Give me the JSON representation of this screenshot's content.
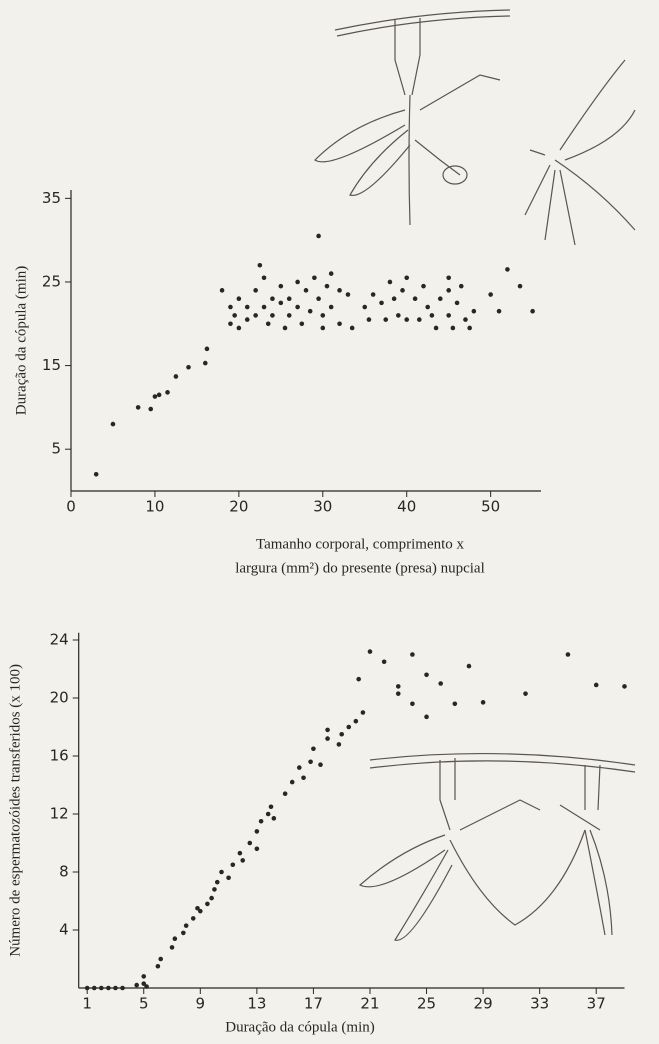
{
  "chart_data": [
    {
      "type": "scatter",
      "y_label": "Duração da cópula (min)",
      "x_label": [
        "Tamanho corporal, comprimento x",
        "largura (mm²) do presente (presa) nupcial"
      ],
      "x": [
        3,
        5,
        8,
        9.5,
        10,
        10.5,
        11.5,
        12.5,
        14,
        16,
        16.2,
        18,
        19,
        19,
        19.5,
        20,
        20,
        21,
        21,
        22,
        22,
        22.5,
        23,
        23,
        23.5,
        24,
        24,
        25,
        25,
        25.5,
        26,
        26,
        27,
        27,
        27.5,
        28,
        28.5,
        29,
        29.5,
        29.5,
        30,
        30,
        30.5,
        31,
        31,
        32,
        32,
        33,
        33.5,
        35,
        35.5,
        36,
        37,
        37.5,
        38,
        38.5,
        39,
        39.5,
        40,
        40,
        41,
        41.5,
        42,
        42.5,
        43,
        43.5,
        44,
        45,
        45,
        45,
        45.5,
        46,
        46.5,
        47,
        47.5,
        48,
        50,
        51,
        52,
        53.5,
        55
      ],
      "values": [
        2,
        8,
        10,
        9.8,
        11.3,
        11.5,
        11.8,
        13.7,
        14.8,
        15.3,
        17,
        24,
        22,
        20,
        21,
        23,
        19.5,
        22,
        20.5,
        24,
        21,
        27,
        25.5,
        22,
        20,
        23,
        21,
        24.5,
        22.5,
        19.5,
        23,
        21,
        25,
        22,
        20,
        24,
        21.5,
        25.5,
        30.5,
        23,
        21,
        19.5,
        24.5,
        26,
        22,
        24,
        20,
        23.5,
        19.5,
        22,
        20.5,
        23.5,
        22.5,
        20.5,
        25,
        23,
        21,
        24,
        25.5,
        20.5,
        23,
        20.5,
        24.5,
        22,
        21,
        19.5,
        23,
        25.5,
        24,
        21,
        19.5,
        22.5,
        24.5,
        20.5,
        19.5,
        21.5,
        23.5,
        21.5,
        26.5,
        24.5,
        21.5
      ],
      "color": "#2a2622",
      "xlim": [
        0,
        56
      ],
      "ylim": [
        0,
        36
      ],
      "xticks": [
        0,
        10,
        20,
        30,
        40,
        50
      ],
      "yticks": [
        5,
        15,
        25,
        35
      ]
    },
    {
      "type": "scatter",
      "y_label": "Número de espermatozóides transferidos (x 100)",
      "x_label": [
        "Duração da cópula (min)"
      ],
      "x": [
        1,
        1.5,
        2,
        2.5,
        3,
        3.5,
        4.5,
        5,
        5,
        5.2,
        6,
        6.2,
        7,
        7.2,
        7.8,
        8,
        8.5,
        8.8,
        9,
        9.5,
        9.8,
        10,
        10.2,
        10.5,
        11,
        11.3,
        11.8,
        12,
        12.5,
        13,
        13,
        13.3,
        13.8,
        14,
        14.2,
        15,
        15.5,
        16,
        16.3,
        16.8,
        17,
        17.5,
        18,
        18,
        18.8,
        19,
        19.5,
        20,
        20.2,
        20.5,
        21,
        22,
        23,
        23,
        24,
        24,
        25,
        25,
        26,
        27,
        28,
        29,
        32,
        35,
        37,
        39
      ],
      "values": [
        0,
        0,
        0,
        0,
        0,
        0,
        0.2,
        0.3,
        0.8,
        0.1,
        1.5,
        2,
        2.8,
        3.4,
        3.8,
        4.3,
        4.8,
        5.5,
        5.3,
        5.8,
        6.2,
        6.8,
        7.3,
        8,
        7.6,
        8.5,
        9.3,
        8.8,
        10,
        9.6,
        10.8,
        11.5,
        12,
        12.5,
        11.7,
        13.4,
        14.2,
        15.2,
        14.5,
        15.6,
        16.5,
        15.4,
        17.8,
        17.2,
        16.8,
        17.5,
        18,
        18.4,
        21.3,
        19,
        23.2,
        22.5,
        20.8,
        20.3,
        23,
        19.6,
        21.6,
        18.7,
        21,
        19.6,
        22.2,
        19.7,
        20.3,
        23,
        20.9,
        20.8
      ],
      "color": "#2a2622",
      "xlim": [
        0.4,
        39
      ],
      "ylim": [
        0,
        24.5
      ],
      "xticks": [
        1,
        5,
        9,
        13,
        17,
        21,
        25,
        29,
        33,
        37
      ],
      "yticks": [
        4,
        8,
        12,
        16,
        20,
        24
      ]
    }
  ]
}
